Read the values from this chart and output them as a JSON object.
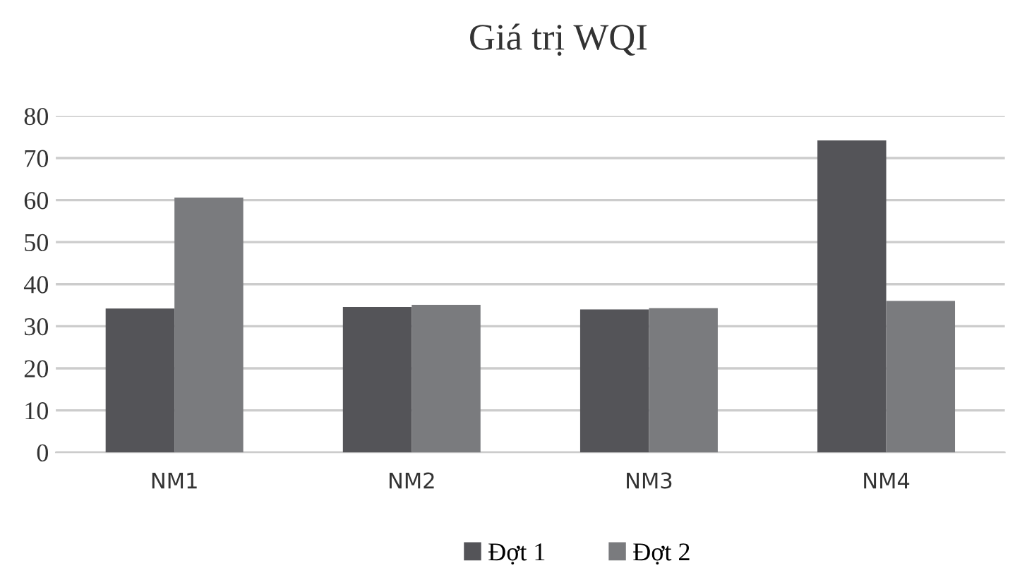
{
  "chart_data": {
    "type": "bar",
    "title": "Giá trị WQI",
    "categories": [
      "NM1",
      "NM2",
      "NM3",
      "NM4"
    ],
    "series": [
      {
        "name": "Đợt 1",
        "color": "#545458",
        "values": [
          34.2,
          34.6,
          34.0,
          74.2
        ]
      },
      {
        "name": "Đợt 2",
        "color": "#7a7b7e",
        "values": [
          60.6,
          35.1,
          34.3,
          36.0
        ]
      }
    ],
    "ylim": [
      0,
      80
    ],
    "yticks": [
      0,
      10,
      20,
      30,
      40,
      50,
      60,
      70,
      80
    ],
    "grid": "y",
    "legend": "bottom"
  }
}
